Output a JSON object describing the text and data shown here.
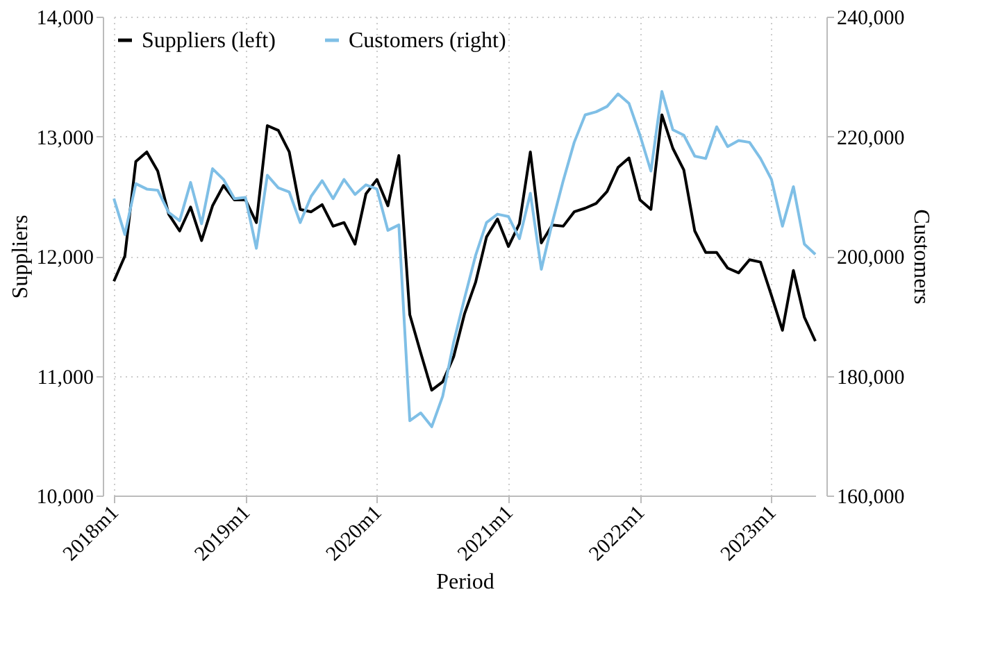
{
  "chart_data": {
    "type": "line",
    "xlabel": "Period",
    "ylabel": "Suppliers",
    "y2label": "Customers",
    "categories": [
      "2018m1",
      null,
      null,
      null,
      null,
      null,
      null,
      null,
      null,
      null,
      null,
      null,
      "2019m1",
      null,
      null,
      null,
      null,
      null,
      null,
      null,
      null,
      null,
      null,
      null,
      "2020m1",
      null,
      null,
      null,
      null,
      null,
      null,
      null,
      null,
      null,
      null,
      null,
      "2021m1",
      null,
      null,
      null,
      null,
      null,
      null,
      null,
      null,
      null,
      null,
      null,
      "2022m1",
      null,
      null,
      null,
      null,
      null,
      null,
      null,
      null,
      null,
      null,
      null,
      "2023m1",
      null,
      null,
      null,
      null
    ],
    "series": [
      {
        "name": "Suppliers (left)",
        "color": "#000000",
        "values": [
          11790,
          12000,
          12790,
          12870,
          12710,
          12350,
          12210,
          12410,
          12130,
          12420,
          12590,
          12470,
          12470,
          12280,
          13090,
          13050,
          12870,
          12390,
          12370,
          12430,
          12250,
          12280,
          12100,
          12520,
          12640,
          12420,
          12840,
          11510,
          11190,
          10880,
          10950,
          11160,
          11520,
          11780,
          12160,
          12310,
          12080,
          12270,
          12870,
          12110,
          12260,
          12250,
          12370,
          12400,
          12440,
          12540,
          12740,
          12820,
          12470,
          12390,
          13180,
          12900,
          12720,
          12210,
          12030,
          12030,
          11900,
          11860,
          11970,
          11950,
          11670,
          11380,
          11880,
          11490,
          11290
        ]
      },
      {
        "name": "Customers (right)",
        "color": "#7fbfe6",
        "axis": "y2",
        "values": [
          209600,
          203600,
          212100,
          211200,
          211000,
          207300,
          205900,
          212300,
          205400,
          214600,
          212800,
          209600,
          209800,
          201300,
          213500,
          211400,
          210700,
          205600,
          210000,
          212600,
          209600,
          212800,
          210300,
          211900,
          211200,
          204300,
          205200,
          172500,
          173800,
          171500,
          176600,
          185600,
          193000,
          200100,
          205600,
          207000,
          206600,
          202900,
          210500,
          197800,
          205600,
          212600,
          219000,
          223600,
          224100,
          225000,
          227100,
          225500,
          220200,
          214200,
          227500,
          221100,
          220200,
          216700,
          216300,
          221600,
          218300,
          219300,
          219000,
          216300,
          212800,
          205000,
          211600,
          202000,
          200300
        ]
      }
    ],
    "ylim": [
      10000,
      14000
    ],
    "yticks": [
      {
        "value": 10000,
        "label": "10,000"
      },
      {
        "value": 11000,
        "label": "11,000"
      },
      {
        "value": 12000,
        "label": "12,000"
      },
      {
        "value": 13000,
        "label": "13,000"
      },
      {
        "value": 14000,
        "label": "14,000"
      }
    ],
    "y2lim": [
      160000,
      240000
    ],
    "y2ticks": [
      {
        "value": 160000,
        "label": "160,000"
      },
      {
        "value": 180000,
        "label": "180,000"
      },
      {
        "value": 200000,
        "label": "200,000"
      },
      {
        "value": 220000,
        "label": "220,000"
      },
      {
        "value": 240000,
        "label": "240,000"
      }
    ],
    "grid": true,
    "legend": "top",
    "line_style": "solid",
    "marker": "none"
  }
}
